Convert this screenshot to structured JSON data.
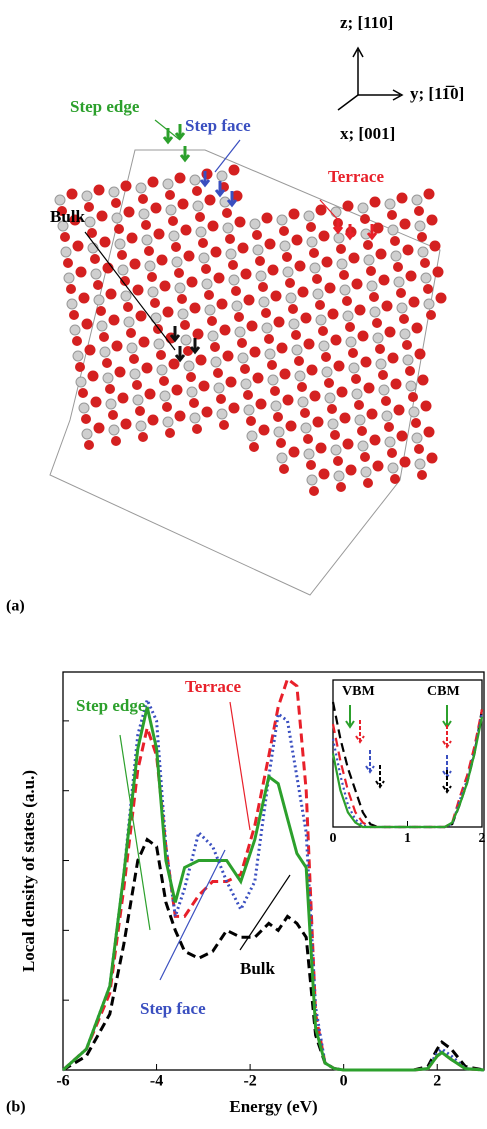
{
  "panel_a": {
    "label": "(a)",
    "axis_z": "z; [110]",
    "axis_y": "y; [11̅0]",
    "axis_x": "x; [001]",
    "sites": [
      "Step edge",
      "Step face",
      "Terrace",
      "Bulk"
    ]
  },
  "chart_data": [
    {
      "type": "line",
      "panel_label": "(b)",
      "xlabel": "Energy (eV)",
      "ylabel": "Local density of states (a.u.)",
      "x": [
        -6,
        -5.5,
        -5,
        -4.7,
        -4.4,
        -4.2,
        -4.0,
        -3.8,
        -3.6,
        -3.4,
        -3.1,
        -2.8,
        -2.5,
        -2.2,
        -1.9,
        -1.6,
        -1.4,
        -1.2,
        -1.0,
        -0.8,
        -0.6,
        -0.4,
        -0.2,
        0,
        0.5,
        1,
        1.5,
        1.8,
        2.0,
        2.1,
        2.3,
        2.6,
        3
      ],
      "xlim": [
        -6,
        3
      ],
      "xticks": [
        -6,
        -4,
        -2,
        0,
        2
      ],
      "ylim": [
        0,
        5.7
      ],
      "yticks": [
        0,
        1,
        2,
        3,
        4,
        5
      ],
      "series": [
        {
          "name": "Step edge",
          "color": "#2ca02c",
          "style": "solid",
          "values": [
            0,
            0.3,
            1.2,
            2.8,
            4.6,
            5.2,
            4.6,
            3.0,
            2.4,
            2.9,
            3.0,
            3.0,
            3.0,
            2.7,
            3.3,
            4.2,
            4.1,
            3.6,
            3.1,
            2.9,
            0.6,
            0.1,
            0.02,
            0,
            0,
            0,
            0,
            0.02,
            0.2,
            0.25,
            0.15,
            0.02,
            0
          ]
        },
        {
          "name": "Terrace",
          "color": "#e8202a",
          "style": "dashed",
          "values": [
            0,
            0.3,
            1.1,
            2.6,
            4.3,
            4.9,
            4.5,
            3.2,
            2.2,
            2.2,
            2.5,
            2.7,
            2.7,
            2.8,
            3.5,
            4.5,
            5.2,
            5.6,
            5.5,
            4.0,
            0.8,
            0.1,
            0.02,
            0,
            0,
            0,
            0,
            0.02,
            0.2,
            0.25,
            0.15,
            0.02,
            0
          ]
        },
        {
          "name": "Step face",
          "color": "#3a4fc0",
          "style": "dotted",
          "values": [
            0,
            0.3,
            1.2,
            2.8,
            4.8,
            5.3,
            5.0,
            3.2,
            2.2,
            2.6,
            3.4,
            3.2,
            2.7,
            2.3,
            2.7,
            4.2,
            5.1,
            5.0,
            4.2,
            3.4,
            0.9,
            0.1,
            0.02,
            0,
            0,
            0,
            0,
            0.02,
            0.25,
            0.3,
            0.2,
            0.02,
            0
          ]
        },
        {
          "name": "Bulk",
          "color": "#000000",
          "style": "dashed",
          "values": [
            0,
            0.2,
            0.8,
            1.8,
            3.0,
            3.3,
            3.2,
            2.4,
            2.0,
            1.7,
            1.6,
            1.7,
            2.0,
            1.9,
            1.9,
            2.1,
            2.0,
            2.2,
            2.1,
            1.9,
            0.5,
            0.1,
            0.02,
            0,
            0,
            0,
            0,
            0.05,
            0.3,
            0.4,
            0.3,
            0.05,
            0
          ]
        }
      ]
    },
    {
      "type": "line",
      "annotations": [
        "VBM",
        "CBM"
      ],
      "x": [
        0,
        0.1,
        0.2,
        0.3,
        0.4,
        0.5,
        0.6,
        1.4,
        1.5,
        1.6,
        1.7,
        1.8,
        1.9,
        2
      ],
      "xlim": [
        0,
        2
      ],
      "xticks": [
        0,
        1,
        2
      ],
      "ylim": [
        0,
        1
      ],
      "series": [
        {
          "color": "#000000",
          "style": "dashed",
          "values": [
            0.85,
            0.6,
            0.4,
            0.25,
            0.1,
            0.02,
            0,
            0,
            0,
            0.02,
            0.15,
            0.3,
            0.5,
            0.8
          ]
        },
        {
          "color": "#e8202a",
          "style": "dashed",
          "values": [
            0.7,
            0.45,
            0.25,
            0.1,
            0.03,
            0,
            0,
            0,
            0,
            0.03,
            0.2,
            0.35,
            0.55,
            0.8
          ]
        },
        {
          "color": "#3a4fc0",
          "style": "dotted",
          "values": [
            0.6,
            0.35,
            0.15,
            0.05,
            0.01,
            0,
            0,
            0,
            0,
            0.02,
            0.18,
            0.32,
            0.52,
            0.78
          ]
        },
        {
          "color": "#2ca02c",
          "style": "solid",
          "values": [
            0.5,
            0.25,
            0.1,
            0.03,
            0,
            0,
            0,
            0,
            0,
            0.03,
            0.15,
            0.3,
            0.5,
            0.75
          ]
        }
      ]
    }
  ]
}
